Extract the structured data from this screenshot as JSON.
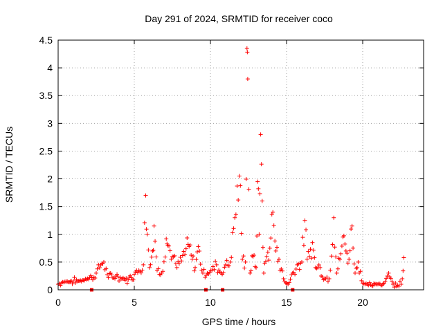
{
  "chart_data": {
    "type": "scatter",
    "title": "Day 291 of 2024, SRMTID for receiver coco",
    "xlabel": "GPS time / hours",
    "ylabel": "SRMTID / TECUs",
    "xlim": [
      0,
      24
    ],
    "ylim": [
      0,
      4.5
    ],
    "xticks": [
      0,
      5,
      10,
      15,
      20
    ],
    "xtick_labels": [
      "0",
      "5",
      "10",
      "15",
      "20"
    ],
    "yticks": [
      0,
      0.5,
      1,
      1.5,
      2,
      2.5,
      3,
      3.5,
      4,
      4.5
    ],
    "ytick_labels": [
      "0",
      "0.5",
      "1",
      "1.5",
      "2",
      "2.5",
      "3",
      "3.5",
      "4",
      "4.5"
    ],
    "grid": true,
    "marker": "+",
    "color": "#ff0000",
    "series": [
      {
        "name": "SRMTID",
        "x": [
          0.0,
          0.3,
          0.6,
          1.0,
          1.4,
          1.8,
          2.2,
          2.5,
          2.8,
          3.0,
          3.3,
          3.8,
          4.2,
          4.6,
          5.0,
          5.3,
          5.6,
          5.75,
          5.85,
          6.0,
          6.2,
          6.3,
          6.5,
          6.8,
          7.1,
          7.2,
          7.5,
          7.8,
          8.1,
          8.4,
          8.6,
          8.8,
          9.0,
          9.2,
          9.5,
          9.8,
          10.1,
          10.4,
          10.7,
          11.0,
          11.3,
          11.6,
          11.9,
          12.1,
          12.3,
          12.4,
          12.45,
          12.6,
          12.8,
          13.0,
          13.1,
          13.2,
          13.3,
          13.4,
          13.5,
          13.7,
          13.9,
          14.1,
          14.3,
          14.5,
          14.8,
          15.1,
          15.4,
          15.7,
          16.0,
          16.2,
          16.35,
          16.5,
          16.7,
          16.9,
          17.2,
          17.5,
          17.8,
          18.1,
          18.3,
          18.5,
          18.7,
          18.9,
          19.1,
          19.3,
          19.5,
          19.7,
          20.0,
          20.3,
          20.6,
          21.0,
          21.4,
          21.7,
          22.0,
          22.3,
          22.6,
          22.7
        ],
        "y": [
          0.1,
          0.14,
          0.15,
          0.16,
          0.16,
          0.2,
          0.22,
          0.3,
          0.45,
          0.5,
          0.22,
          0.25,
          0.2,
          0.18,
          0.28,
          0.35,
          0.45,
          1.7,
          1.0,
          0.4,
          0.7,
          1.15,
          0.35,
          0.3,
          0.92,
          0.8,
          0.6,
          0.4,
          0.52,
          0.74,
          0.78,
          0.55,
          0.4,
          0.78,
          0.3,
          0.3,
          0.35,
          0.45,
          0.3,
          0.45,
          0.5,
          1.3,
          2.05,
          0.55,
          0.5,
          4.35,
          3.8,
          0.3,
          0.6,
          0.4,
          1.95,
          1.0,
          2.8,
          1.6,
          0.3,
          0.6,
          0.75,
          1.4,
          0.7,
          0.55,
          0.2,
          0.1,
          0.3,
          0.45,
          0.5,
          1.25,
          0.55,
          0.6,
          0.85,
          0.4,
          0.4,
          0.2,
          0.2,
          1.3,
          0.3,
          0.55,
          0.95,
          0.7,
          0.55,
          1.15,
          0.3,
          0.5,
          0.12,
          0.1,
          0.08,
          0.1,
          0.12,
          0.3,
          0.1,
          0.08,
          0.2,
          0.58
        ]
      }
    ],
    "bottom_markers_x": [
      2.2,
      9.7,
      10.8,
      15.4
    ]
  }
}
